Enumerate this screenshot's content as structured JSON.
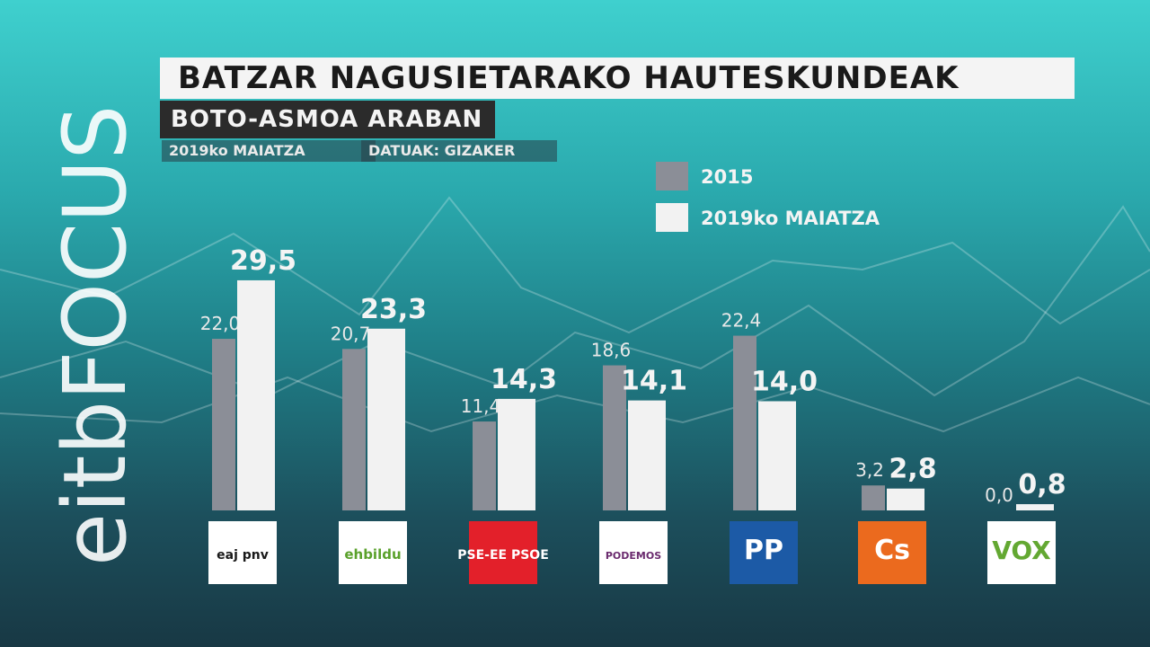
{
  "chart_data": {
    "type": "bar",
    "title": "BATZAR NAGUSIETARAKO HAUTESKUNDEAK",
    "subtitle": "BOTO-ASMOA ARABAN",
    "date_note": "2019ko MAIATZA",
    "source_note": "DATUAK: GIZAKER",
    "brand": "eitbFOCUS",
    "categories": [
      "eaj pnv",
      "ehbildu",
      "PSE-EE PSOE",
      "PODEMOS",
      "PP",
      "Cs",
      "VOX"
    ],
    "series": [
      {
        "name": "2015",
        "color": "#8b8e97",
        "values": [
          22.0,
          20.7,
          11.4,
          18.6,
          22.4,
          3.2,
          0.0
        ],
        "value_labels": [
          "22,0",
          "20,7",
          "11,4",
          "18,6",
          "22,4",
          "3,2",
          "0,0"
        ]
      },
      {
        "name": "2019ko MAIATZA",
        "color": "#f2f2f2",
        "values": [
          29.5,
          23.3,
          14.3,
          14.1,
          14.0,
          2.8,
          0.8
        ],
        "value_labels": [
          "29,5",
          "23,3",
          "14,3",
          "14,1",
          "14,0",
          "2,8",
          "0,8"
        ]
      }
    ]
  }
}
